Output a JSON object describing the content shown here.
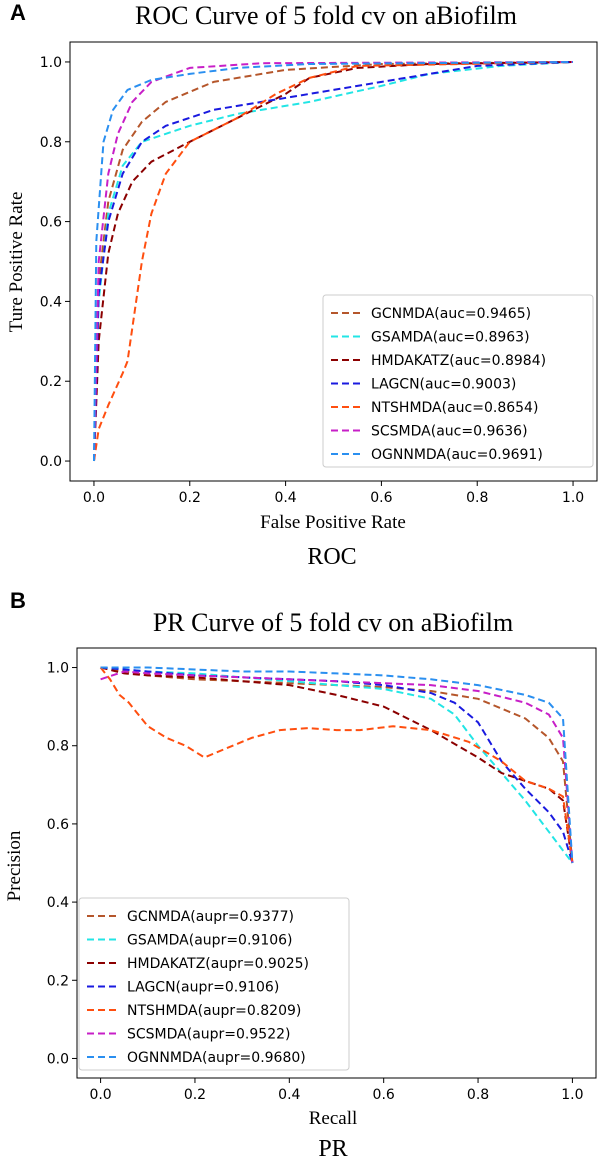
{
  "chart_data": [
    {
      "panel": "A",
      "type": "line",
      "title": "ROC Curve of 5 fold cv on aBiofilm",
      "xlabel": "False Positive Rate",
      "ylabel": "Ture Positive Rate",
      "caption": "ROC",
      "xlim": [
        -0.05,
        1.05
      ],
      "ylim": [
        -0.05,
        1.05
      ],
      "xticks": [
        "0.0",
        "0.2",
        "0.4",
        "0.6",
        "0.8",
        "1.0"
      ],
      "yticks": [
        "0.0",
        "0.2",
        "0.4",
        "0.6",
        "0.8",
        "1.0"
      ],
      "legend_position": "lower-right",
      "series": [
        {
          "name": "GCNMDA(auc=0.9465)",
          "color": "#b5562b",
          "points": [
            [
              0,
              0
            ],
            [
              0.01,
              0.45
            ],
            [
              0.03,
              0.65
            ],
            [
              0.06,
              0.78
            ],
            [
              0.1,
              0.85
            ],
            [
              0.15,
              0.9
            ],
            [
              0.25,
              0.95
            ],
            [
              0.4,
              0.98
            ],
            [
              0.6,
              0.995
            ],
            [
              1,
              1
            ]
          ]
        },
        {
          "name": "GSAMDA(auc=0.8963)",
          "color": "#22e5e5",
          "points": [
            [
              0,
              0
            ],
            [
              0.01,
              0.4
            ],
            [
              0.03,
              0.62
            ],
            [
              0.06,
              0.74
            ],
            [
              0.1,
              0.8
            ],
            [
              0.2,
              0.84
            ],
            [
              0.3,
              0.87
            ],
            [
              0.45,
              0.9
            ],
            [
              0.6,
              0.94
            ],
            [
              0.7,
              0.97
            ],
            [
              0.85,
              0.99
            ],
            [
              1,
              1
            ]
          ]
        },
        {
          "name": "HMDAKATZ(auc=0.8984)",
          "color": "#8b0000",
          "points": [
            [
              0,
              0
            ],
            [
              0.01,
              0.3
            ],
            [
              0.03,
              0.52
            ],
            [
              0.05,
              0.62
            ],
            [
              0.08,
              0.7
            ],
            [
              0.12,
              0.75
            ],
            [
              0.2,
              0.8
            ],
            [
              0.3,
              0.86
            ],
            [
              0.4,
              0.92
            ],
            [
              0.45,
              0.96
            ],
            [
              0.55,
              0.985
            ],
            [
              0.7,
              0.995
            ],
            [
              1,
              1
            ]
          ]
        },
        {
          "name": "LAGCN(auc=0.9003)",
          "color": "#1a1adf",
          "points": [
            [
              0,
              0
            ],
            [
              0.01,
              0.42
            ],
            [
              0.03,
              0.6
            ],
            [
              0.06,
              0.72
            ],
            [
              0.1,
              0.8
            ],
            [
              0.15,
              0.84
            ],
            [
              0.25,
              0.88
            ],
            [
              0.35,
              0.9
            ],
            [
              0.5,
              0.93
            ],
            [
              0.65,
              0.96
            ],
            [
              0.8,
              0.99
            ],
            [
              1,
              1
            ]
          ]
        },
        {
          "name": "NTSHMDA(auc=0.8654)",
          "color": "#ff4e0f",
          "points": [
            [
              0,
              0
            ],
            [
              0.01,
              0.08
            ],
            [
              0.03,
              0.14
            ],
            [
              0.06,
              0.22
            ],
            [
              0.07,
              0.25
            ],
            [
              0.1,
              0.5
            ],
            [
              0.12,
              0.62
            ],
            [
              0.15,
              0.72
            ],
            [
              0.2,
              0.8
            ],
            [
              0.3,
              0.86
            ],
            [
              0.38,
              0.92
            ],
            [
              0.45,
              0.96
            ],
            [
              0.55,
              0.99
            ],
            [
              1,
              1
            ]
          ]
        },
        {
          "name": "SCSMDA(auc=0.9636)",
          "color": "#c71fc7",
          "points": [
            [
              0,
              0
            ],
            [
              0.01,
              0.5
            ],
            [
              0.03,
              0.72
            ],
            [
              0.05,
              0.82
            ],
            [
              0.08,
              0.9
            ],
            [
              0.12,
              0.95
            ],
            [
              0.2,
              0.985
            ],
            [
              0.35,
              0.997
            ],
            [
              1,
              1
            ]
          ]
        },
        {
          "name": "OGNNMDA(auc=0.9691)",
          "color": "#2a8ff0",
          "points": [
            [
              0,
              0
            ],
            [
              0.005,
              0.55
            ],
            [
              0.02,
              0.8
            ],
            [
              0.04,
              0.88
            ],
            [
              0.07,
              0.93
            ],
            [
              0.12,
              0.955
            ],
            [
              0.2,
              0.97
            ],
            [
              0.3,
              0.985
            ],
            [
              0.45,
              0.995
            ],
            [
              1,
              1
            ]
          ]
        }
      ]
    },
    {
      "panel": "B",
      "type": "line",
      "title": "PR Curve of 5 fold cv on aBiofilm",
      "xlabel": "Recall",
      "ylabel": "Precision",
      "caption": "PR",
      "xlim": [
        -0.05,
        1.05
      ],
      "ylim": [
        -0.05,
        1.05
      ],
      "xticks": [
        "0.0",
        "0.2",
        "0.4",
        "0.6",
        "0.8",
        "1.0"
      ],
      "yticks": [
        "0.0",
        "0.2",
        "0.4",
        "0.6",
        "0.8",
        "1.0"
      ],
      "legend_position": "lower-left",
      "series": [
        {
          "name": "GCNMDA(aupr=0.9377)",
          "color": "#b5562b",
          "points": [
            [
              0,
              1
            ],
            [
              0.1,
              0.98
            ],
            [
              0.2,
              0.97
            ],
            [
              0.3,
              0.965
            ],
            [
              0.4,
              0.96
            ],
            [
              0.5,
              0.955
            ],
            [
              0.6,
              0.95
            ],
            [
              0.7,
              0.94
            ],
            [
              0.8,
              0.92
            ],
            [
              0.9,
              0.87
            ],
            [
              0.95,
              0.82
            ],
            [
              0.98,
              0.76
            ],
            [
              1,
              0.5
            ]
          ]
        },
        {
          "name": "GSAMDA(aupr=0.9106)",
          "color": "#22e5e5",
          "points": [
            [
              0,
              1
            ],
            [
              0.1,
              0.99
            ],
            [
              0.2,
              0.985
            ],
            [
              0.3,
              0.975
            ],
            [
              0.4,
              0.965
            ],
            [
              0.5,
              0.955
            ],
            [
              0.6,
              0.945
            ],
            [
              0.7,
              0.92
            ],
            [
              0.75,
              0.88
            ],
            [
              0.8,
              0.8
            ],
            [
              0.85,
              0.73
            ],
            [
              0.9,
              0.66
            ],
            [
              0.95,
              0.58
            ],
            [
              1,
              0.5
            ]
          ]
        },
        {
          "name": "HMDAKATZ(aupr=0.9025)",
          "color": "#8b0000",
          "points": [
            [
              0,
              1
            ],
            [
              0.05,
              0.985
            ],
            [
              0.1,
              0.98
            ],
            [
              0.2,
              0.975
            ],
            [
              0.3,
              0.965
            ],
            [
              0.4,
              0.955
            ],
            [
              0.5,
              0.93
            ],
            [
              0.6,
              0.9
            ],
            [
              0.7,
              0.84
            ],
            [
              0.8,
              0.77
            ],
            [
              0.85,
              0.73
            ],
            [
              0.9,
              0.71
            ],
            [
              0.95,
              0.69
            ],
            [
              0.98,
              0.66
            ],
            [
              1,
              0.5
            ]
          ]
        },
        {
          "name": "LAGCN(aupr=0.9106)",
          "color": "#1a1adf",
          "points": [
            [
              0,
              1
            ],
            [
              0.1,
              0.99
            ],
            [
              0.2,
              0.98
            ],
            [
              0.3,
              0.975
            ],
            [
              0.4,
              0.97
            ],
            [
              0.5,
              0.965
            ],
            [
              0.6,
              0.955
            ],
            [
              0.7,
              0.935
            ],
            [
              0.75,
              0.91
            ],
            [
              0.8,
              0.86
            ],
            [
              0.85,
              0.76
            ],
            [
              0.9,
              0.69
            ],
            [
              0.95,
              0.63
            ],
            [
              0.98,
              0.58
            ],
            [
              1,
              0.5
            ]
          ]
        },
        {
          "name": "NTSHMDA(aupr=0.8209)",
          "color": "#ff4e0f",
          "points": [
            [
              0,
              1
            ],
            [
              0.02,
              0.97
            ],
            [
              0.04,
              0.93
            ],
            [
              0.06,
              0.91
            ],
            [
              0.08,
              0.88
            ],
            [
              0.1,
              0.85
            ],
            [
              0.14,
              0.82
            ],
            [
              0.18,
              0.8
            ],
            [
              0.22,
              0.77
            ],
            [
              0.26,
              0.79
            ],
            [
              0.32,
              0.82
            ],
            [
              0.38,
              0.84
            ],
            [
              0.44,
              0.845
            ],
            [
              0.5,
              0.84
            ],
            [
              0.55,
              0.84
            ],
            [
              0.62,
              0.85
            ],
            [
              0.7,
              0.84
            ],
            [
              0.78,
              0.81
            ],
            [
              0.85,
              0.76
            ],
            [
              0.9,
              0.71
            ],
            [
              0.95,
              0.69
            ],
            [
              0.98,
              0.67
            ],
            [
              1,
              0.5
            ]
          ]
        },
        {
          "name": "SCSMDA(aupr=0.9522)",
          "color": "#c71fc7",
          "points": [
            [
              0,
              0.97
            ],
            [
              0.05,
              0.99
            ],
            [
              0.1,
              0.985
            ],
            [
              0.2,
              0.98
            ],
            [
              0.3,
              0.975
            ],
            [
              0.4,
              0.97
            ],
            [
              0.5,
              0.965
            ],
            [
              0.6,
              0.96
            ],
            [
              0.7,
              0.955
            ],
            [
              0.8,
              0.94
            ],
            [
              0.9,
              0.91
            ],
            [
              0.95,
              0.88
            ],
            [
              0.98,
              0.82
            ],
            [
              1,
              0.5
            ]
          ]
        },
        {
          "name": "OGNNMDA(aupr=0.9680)",
          "color": "#2a8ff0",
          "points": [
            [
              0,
              1
            ],
            [
              0.1,
              1.0
            ],
            [
              0.2,
              0.995
            ],
            [
              0.3,
              0.99
            ],
            [
              0.4,
              0.99
            ],
            [
              0.5,
              0.985
            ],
            [
              0.6,
              0.98
            ],
            [
              0.7,
              0.97
            ],
            [
              0.8,
              0.955
            ],
            [
              0.9,
              0.93
            ],
            [
              0.95,
              0.91
            ],
            [
              0.98,
              0.87
            ],
            [
              1,
              0.5
            ]
          ]
        }
      ]
    }
  ]
}
